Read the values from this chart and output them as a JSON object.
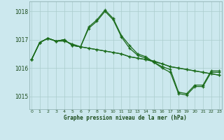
{
  "bg_color": "#cce8ee",
  "grid_color": "#aacccc",
  "line_color": "#1a6b1a",
  "ylim": [
    1014.55,
    1018.35
  ],
  "xlim": [
    -0.3,
    23.3
  ],
  "yticks": [
    1015,
    1016,
    1017,
    1018
  ],
  "xtick_labels": [
    "0",
    "1",
    "2",
    "3",
    "4",
    "5",
    "6",
    "7",
    "8",
    "9",
    "10",
    "11",
    "12",
    "13",
    "14",
    "15",
    "16",
    "17",
    "18",
    "19",
    "20",
    "21",
    "22",
    "23"
  ],
  "xlabel": "Graphe pression niveau de la mer (hPa)",
  "series": [
    [
      1016.3,
      1016.9,
      1017.05,
      1016.95,
      1016.95,
      1016.85,
      1016.75,
      1016.7,
      1016.65,
      1016.6,
      1016.55,
      1016.5,
      1016.4,
      1016.35,
      1016.3,
      1016.25,
      1016.15,
      1016.05,
      1016.0,
      1015.95,
      1015.9,
      1015.85,
      1015.8,
      1015.75
    ],
    [
      1016.3,
      1016.9,
      1017.05,
      1016.95,
      1017.0,
      1016.8,
      1016.75,
      1016.7,
      1016.65,
      1016.6,
      1016.55,
      1016.5,
      1016.4,
      1016.35,
      1016.3,
      1016.22,
      1016.15,
      1016.05,
      1016.0,
      1015.95,
      1015.9,
      1015.85,
      1015.8,
      1015.75
    ],
    [
      1016.3,
      1016.9,
      1017.05,
      1016.95,
      1017.0,
      1016.8,
      1016.75,
      1017.4,
      1017.65,
      1018.0,
      1017.7,
      1017.1,
      1016.7,
      1016.45,
      1016.35,
      1016.2,
      1016.0,
      1015.85,
      1015.1,
      1015.05,
      1015.35,
      1015.35,
      1015.85,
      1015.85
    ],
    [
      1016.3,
      1016.9,
      1017.05,
      1016.95,
      1017.0,
      1016.8,
      1016.75,
      1017.45,
      1017.7,
      1018.05,
      1017.75,
      1017.15,
      1016.8,
      1016.5,
      1016.4,
      1016.2,
      1016.05,
      1015.95,
      1015.15,
      1015.1,
      1015.4,
      1015.4,
      1015.9,
      1015.9
    ]
  ]
}
